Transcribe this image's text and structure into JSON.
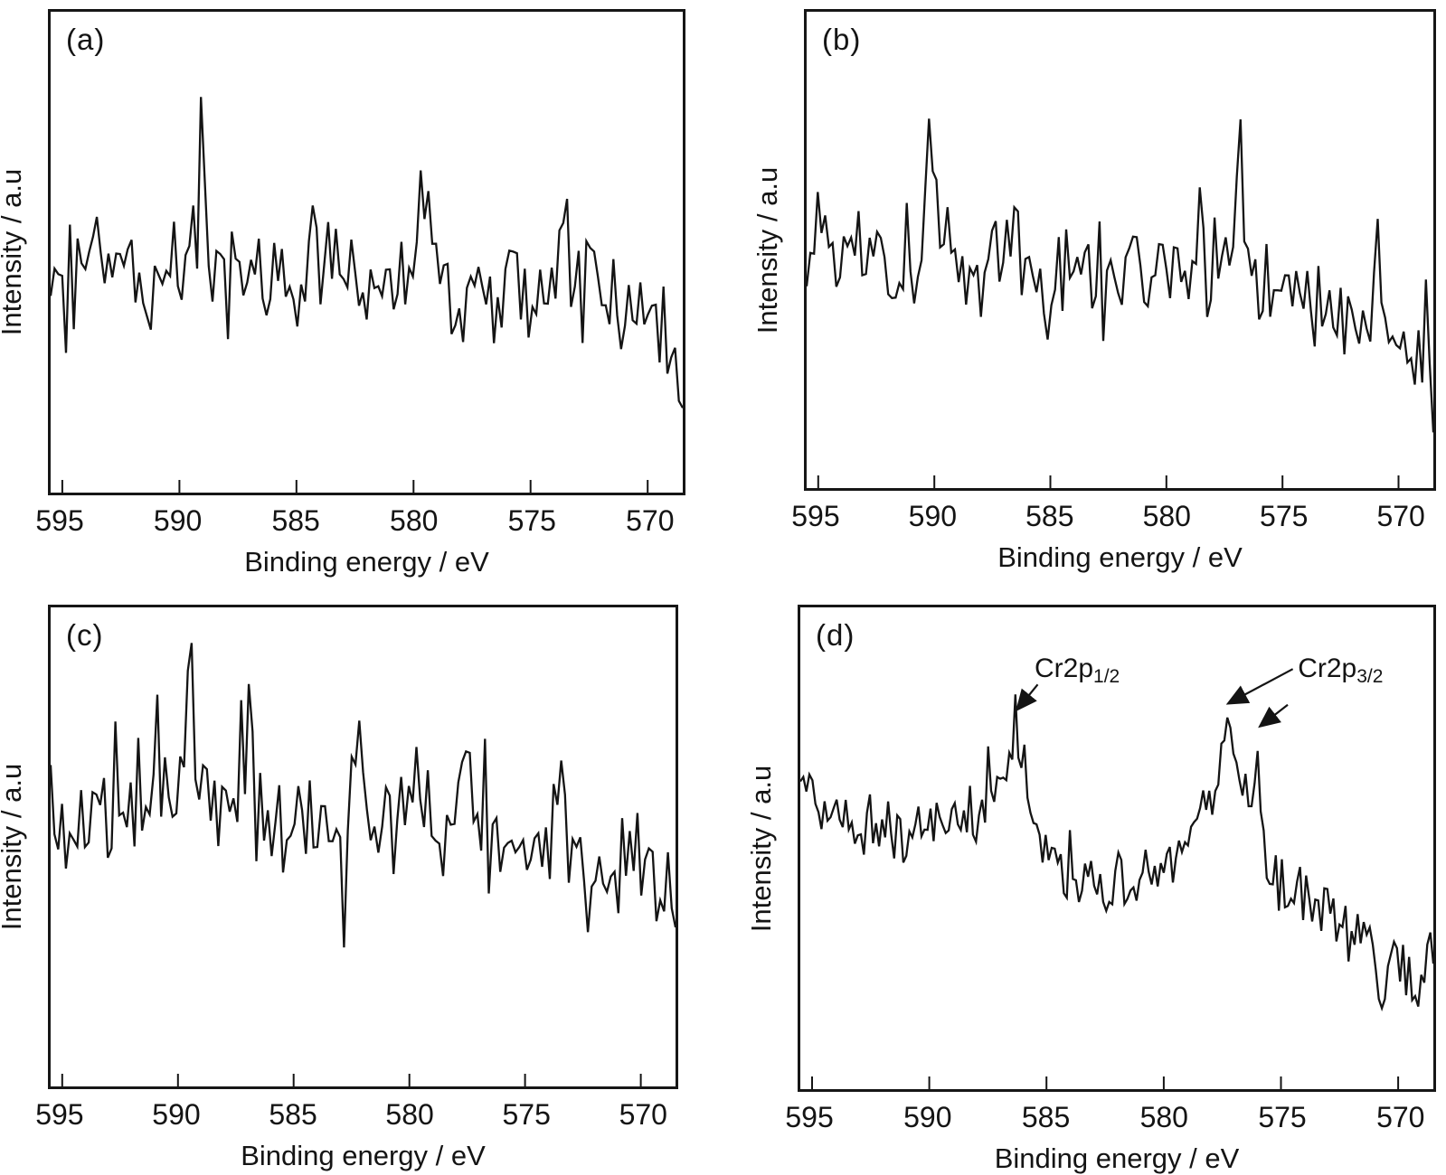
{
  "figure": {
    "type": "xps-spectra-2x2-grid",
    "background": "#ffffff",
    "line_color": "#141414",
    "frame_color": "#161616",
    "x_axis_direction": "reversed"
  },
  "chart_data": [
    {
      "id": "a",
      "type": "line",
      "label": "(a)",
      "title": "XPS spectrum panel (a): noisy baseline, no Cr peaks detected",
      "xlabel": "Binding energy / eV",
      "ylabel": "Intensity / a.u",
      "x_range": [
        595.5,
        568.5
      ],
      "x_ticks": [
        595,
        590,
        585,
        580,
        575,
        570
      ],
      "y_axis": "arbitrary units, no ticks",
      "grid": false,
      "legend": false,
      "n_points": 165,
      "seed": 101,
      "noise": 0.105,
      "envelope": [
        [
          595.5,
          0.5
        ],
        [
          594.5,
          0.46
        ],
        [
          593,
          0.47
        ],
        [
          591.5,
          0.44
        ],
        [
          590,
          0.46
        ],
        [
          588.5,
          0.47
        ],
        [
          587,
          0.45
        ],
        [
          585.5,
          0.44
        ],
        [
          584,
          0.45
        ],
        [
          582.5,
          0.43
        ],
        [
          581,
          0.44
        ],
        [
          579.5,
          0.45
        ],
        [
          578,
          0.42
        ],
        [
          576.5,
          0.43
        ],
        [
          575,
          0.42
        ],
        [
          573.5,
          0.43
        ],
        [
          572,
          0.41
        ],
        [
          570.5,
          0.4
        ],
        [
          569.5,
          0.38
        ],
        [
          569,
          0.33
        ],
        [
          568.5,
          0.2
        ]
      ],
      "spikes": [
        [
          593.6,
          0.2,
          0.4
        ],
        [
          589.1,
          0.28,
          0.45
        ],
        [
          584.2,
          0.16,
          0.35
        ],
        [
          579.6,
          0.24,
          0.4
        ],
        [
          575.9,
          0.14,
          0.3
        ],
        [
          573.6,
          0.18,
          0.35
        ],
        [
          572.2,
          0.16,
          0.3
        ]
      ]
    },
    {
      "id": "b",
      "type": "line",
      "label": "(b)",
      "title": "XPS spectrum panel (b): noisy baseline declining at low binding energy",
      "xlabel": "Binding energy / eV",
      "ylabel": "Intensity / a.u",
      "x_range": [
        595.5,
        568.5
      ],
      "x_ticks": [
        595,
        590,
        585,
        580,
        575,
        570
      ],
      "y_axis": "arbitrary units, no ticks",
      "grid": false,
      "legend": false,
      "n_points": 170,
      "seed": 202,
      "noise": 0.095,
      "envelope": [
        [
          595.5,
          0.52
        ],
        [
          594.5,
          0.48
        ],
        [
          593,
          0.47
        ],
        [
          591.5,
          0.46
        ],
        [
          590,
          0.48
        ],
        [
          588.5,
          0.46
        ],
        [
          587,
          0.46
        ],
        [
          585.5,
          0.45
        ],
        [
          584,
          0.46
        ],
        [
          582.5,
          0.43
        ],
        [
          581,
          0.43
        ],
        [
          579.5,
          0.44
        ],
        [
          578,
          0.46
        ],
        [
          577,
          0.46
        ],
        [
          576,
          0.44
        ],
        [
          575,
          0.41
        ],
        [
          574,
          0.39
        ],
        [
          573,
          0.38
        ],
        [
          572,
          0.36
        ],
        [
          571,
          0.34
        ],
        [
          570,
          0.32
        ],
        [
          569.3,
          0.27
        ],
        [
          568.8,
          0.25
        ],
        [
          568.5,
          0.18
        ]
      ],
      "spikes": [
        [
          594.9,
          0.16,
          0.3
        ],
        [
          590.2,
          0.26,
          0.35
        ],
        [
          586.4,
          0.14,
          0.3
        ],
        [
          581.3,
          0.15,
          0.3
        ],
        [
          578.6,
          0.13,
          0.3
        ],
        [
          576.8,
          0.24,
          0.35
        ],
        [
          570.9,
          0.12,
          0.25
        ]
      ]
    },
    {
      "id": "c",
      "type": "line",
      "label": "(c)",
      "title": "XPS spectrum panel (c): noisy baseline with slight decline, no Cr peaks",
      "xlabel": "Binding energy / eV",
      "ylabel": "Intensity / a.u",
      "x_range": [
        595.5,
        568.5
      ],
      "x_ticks": [
        595,
        590,
        585,
        580,
        575,
        570
      ],
      "y_axis": "arbitrary units, no ticks",
      "grid": false,
      "legend": false,
      "n_points": 165,
      "seed": 303,
      "noise": 0.105,
      "envelope": [
        [
          595.5,
          0.56
        ],
        [
          594,
          0.55
        ],
        [
          592.5,
          0.56
        ],
        [
          591,
          0.57
        ],
        [
          589.5,
          0.59
        ],
        [
          588,
          0.57
        ],
        [
          586.5,
          0.56
        ],
        [
          585,
          0.54
        ],
        [
          583.5,
          0.55
        ],
        [
          582,
          0.56
        ],
        [
          580.5,
          0.53
        ],
        [
          579,
          0.53
        ],
        [
          577.5,
          0.52
        ],
        [
          576,
          0.5
        ],
        [
          574.5,
          0.49
        ],
        [
          573,
          0.48
        ],
        [
          571.5,
          0.47
        ],
        [
          570,
          0.46
        ],
        [
          569,
          0.44
        ],
        [
          568.5,
          0.42
        ]
      ],
      "spikes": [
        [
          590.9,
          0.22,
          0.35
        ],
        [
          589.6,
          0.26,
          0.4
        ],
        [
          586.9,
          0.22,
          0.3
        ],
        [
          582.2,
          0.24,
          0.35
        ],
        [
          579.8,
          0.16,
          0.3
        ],
        [
          577.6,
          0.18,
          0.3
        ],
        [
          575.3,
          0.16,
          0.3
        ],
        [
          573.5,
          0.15,
          0.3
        ]
      ]
    },
    {
      "id": "d",
      "type": "line",
      "label": "(d)",
      "title": "XPS spectrum panel (d): Cr2p doublet detected",
      "xlabel": "Binding energy / eV",
      "ylabel": "Intensity / a.u",
      "x_range": [
        595.5,
        568.5
      ],
      "x_ticks": [
        595,
        590,
        585,
        580,
        575,
        570
      ],
      "y_axis": "arbitrary units, no ticks",
      "grid": false,
      "legend": false,
      "n_points": 210,
      "seed": 404,
      "noise": 0.055,
      "envelope": [
        [
          595.5,
          0.66
        ],
        [
          594.8,
          0.6
        ],
        [
          594,
          0.57
        ],
        [
          593,
          0.55
        ],
        [
          592,
          0.54
        ],
        [
          591,
          0.52
        ],
        [
          590,
          0.53
        ],
        [
          589,
          0.54
        ],
        [
          588,
          0.56
        ],
        [
          587.3,
          0.6
        ],
        [
          586.7,
          0.67
        ],
        [
          586.3,
          0.73
        ],
        [
          585.9,
          0.64
        ],
        [
          585.4,
          0.54
        ],
        [
          584.8,
          0.47
        ],
        [
          584,
          0.44
        ],
        [
          583,
          0.42
        ],
        [
          582,
          0.42
        ],
        [
          581,
          0.44
        ],
        [
          580,
          0.46
        ],
        [
          579.2,
          0.51
        ],
        [
          578.5,
          0.57
        ],
        [
          577.9,
          0.63
        ],
        [
          577.4,
          0.7
        ],
        [
          577,
          0.7
        ],
        [
          576.6,
          0.64
        ],
        [
          576.2,
          0.59
        ],
        [
          576,
          0.62
        ],
        [
          575.7,
          0.52
        ],
        [
          575.4,
          0.42
        ],
        [
          574.8,
          0.41
        ],
        [
          574,
          0.4
        ],
        [
          573.2,
          0.38
        ],
        [
          572.4,
          0.35
        ],
        [
          571.6,
          0.32
        ],
        [
          571,
          0.28
        ],
        [
          570.6,
          0.17
        ],
        [
          570.3,
          0.26
        ],
        [
          569.9,
          0.28
        ],
        [
          569.5,
          0.22
        ],
        [
          569.2,
          0.14
        ],
        [
          568.9,
          0.25
        ],
        [
          568.7,
          0.3
        ],
        [
          568.5,
          0.24
        ]
      ],
      "spikes": [
        [
          586.3,
          0.07,
          0.2
        ],
        [
          577.2,
          0.08,
          0.18
        ],
        [
          576.0,
          0.11,
          0.12
        ]
      ],
      "peaks": [
        {
          "name": "Cr2p1/2",
          "binding_energy_eV": 586.3
        },
        {
          "name": "Cr2p3/2",
          "binding_energy_eV": 577.2
        }
      ],
      "annotations": [
        {
          "main": "Cr2p",
          "sub": "1/2",
          "xf": 0.37,
          "yf": 0.096
        },
        {
          "main": "Cr2p",
          "sub": "3/2",
          "xf": 0.786,
          "yf": 0.096
        }
      ],
      "arrows": [
        {
          "x1f": 0.375,
          "y1f": 0.16,
          "x2f": 0.344,
          "y2f": 0.21
        },
        {
          "x1f": 0.778,
          "y1f": 0.128,
          "x2f": 0.678,
          "y2f": 0.198
        },
        {
          "x1f": 0.77,
          "y1f": 0.202,
          "x2f": 0.728,
          "y2f": 0.245
        }
      ]
    }
  ]
}
